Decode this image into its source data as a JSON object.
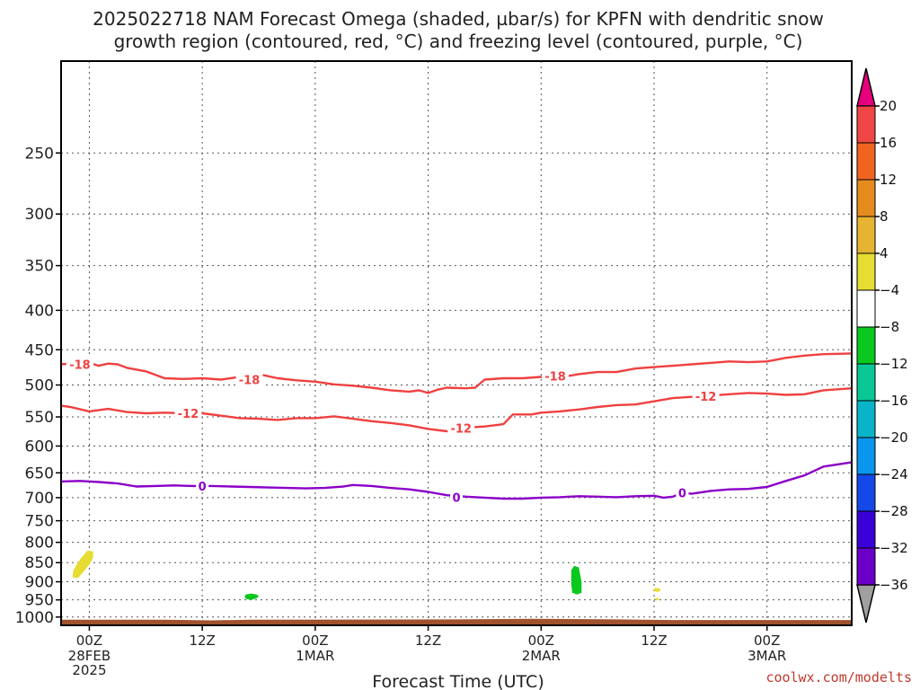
{
  "chart_data": {
    "type": "time-height",
    "title": "2025022718 NAM Forecast Omega (shaded, µbar/s) for KPFN with dendritic snow growth region (contoured, red, °C) and freezing level (contoured, purple, °C)",
    "title_lines": [
      "2025022718 NAM Forecast Omega (shaded, µbar/s) for KPFN with dendritic snow",
      "growth region (contoured, red, °C) and freezing level (contoured, purple, °C)"
    ],
    "xlabel": "Forecast Time (UTC)",
    "ylabel": "",
    "x_unit": "hours from 2025-02-27 18Z",
    "xlim": [
      3,
      87
    ],
    "x_ticks": [
      {
        "x": 6,
        "label": "00Z",
        "date": "28FEB",
        "year": "2025"
      },
      {
        "x": 18,
        "label": "12Z",
        "date": "",
        "year": ""
      },
      {
        "x": 30,
        "label": "00Z",
        "date": "1MAR",
        "year": ""
      },
      {
        "x": 42,
        "label": "12Z",
        "date": "",
        "year": ""
      },
      {
        "x": 54,
        "label": "00Z",
        "date": "2MAR",
        "year": ""
      },
      {
        "x": 66,
        "label": "12Z",
        "date": "",
        "year": ""
      },
      {
        "x": 78,
        "label": "00Z",
        "date": "3MAR",
        "year": ""
      }
    ],
    "y_scale": "log-pressure",
    "ylim_hpa": [
      1025,
      190
    ],
    "y_ticks": [
      250,
      300,
      350,
      400,
      450,
      500,
      550,
      600,
      650,
      700,
      750,
      800,
      850,
      900,
      950,
      1000
    ],
    "grid": true,
    "colorbar": {
      "unit": "µbar/s",
      "levels": [
        -36,
        -32,
        -28,
        -24,
        -20,
        -16,
        -12,
        -8,
        -4,
        4,
        8,
        12,
        16,
        20
      ],
      "colors": [
        "#a0a0a0",
        "#9b00c8",
        "#6a00c8",
        "#3a00d8",
        "#1448e8",
        "#0a96ec",
        "#0ab4c8",
        "#0ac896",
        "#0ac81e",
        "#ffffff",
        "#e6dc32",
        "#e6b432",
        "#e68c1e",
        "#f06420",
        "#f04646",
        "#e6007d"
      ],
      "ticks": [
        20,
        16,
        12,
        8,
        4,
        -4,
        -8,
        -12,
        -16,
        -20,
        -24,
        -28,
        -32,
        -36
      ]
    },
    "contours": [
      {
        "level": -18,
        "color": "#f04040",
        "points": [
          [
            3,
            470
          ],
          [
            4,
            469
          ],
          [
            5,
            473
          ],
          [
            6,
            468
          ],
          [
            7,
            472
          ],
          [
            8,
            469
          ],
          [
            9,
            470
          ],
          [
            10,
            475
          ],
          [
            12,
            480
          ],
          [
            14,
            490
          ],
          [
            16,
            491
          ],
          [
            18,
            490
          ],
          [
            20,
            492
          ],
          [
            22,
            488
          ],
          [
            24,
            484
          ],
          [
            26,
            490
          ],
          [
            28,
            493
          ],
          [
            30,
            495
          ],
          [
            32,
            499
          ],
          [
            34,
            501
          ],
          [
            36,
            504
          ],
          [
            38,
            508
          ],
          [
            40,
            510
          ],
          [
            41,
            508
          ],
          [
            42,
            512
          ],
          [
            43,
            507
          ],
          [
            44,
            504
          ],
          [
            46,
            505
          ],
          [
            47,
            504
          ],
          [
            48,
            492
          ],
          [
            50,
            490
          ],
          [
            52,
            490
          ],
          [
            54,
            488
          ],
          [
            56,
            489
          ],
          [
            58,
            484
          ],
          [
            60,
            481
          ],
          [
            62,
            481
          ],
          [
            64,
            476
          ],
          [
            66,
            474
          ],
          [
            68,
            472
          ],
          [
            70,
            470
          ],
          [
            72,
            468
          ],
          [
            74,
            466
          ],
          [
            76,
            467
          ],
          [
            78,
            466
          ],
          [
            80,
            461
          ],
          [
            82,
            458
          ],
          [
            84,
            456
          ],
          [
            87,
            455
          ]
        ]
      },
      {
        "level": -12,
        "color": "#f04040",
        "points": [
          [
            3,
            532
          ],
          [
            4,
            534
          ],
          [
            6,
            541
          ],
          [
            8,
            537
          ],
          [
            10,
            542
          ],
          [
            12,
            544
          ],
          [
            14,
            543
          ],
          [
            16,
            544
          ],
          [
            18,
            544
          ],
          [
            20,
            548
          ],
          [
            22,
            552
          ],
          [
            24,
            553
          ],
          [
            26,
            555
          ],
          [
            28,
            552
          ],
          [
            30,
            552
          ],
          [
            32,
            549
          ],
          [
            34,
            553
          ],
          [
            36,
            557
          ],
          [
            38,
            560
          ],
          [
            40,
            564
          ],
          [
            42,
            570
          ],
          [
            44,
            574
          ],
          [
            45,
            572
          ],
          [
            46,
            568
          ],
          [
            48,
            566
          ],
          [
            49,
            564
          ],
          [
            50,
            562
          ],
          [
            51,
            546
          ],
          [
            53,
            546
          ],
          [
            54,
            543
          ],
          [
            56,
            541
          ],
          [
            58,
            538
          ],
          [
            60,
            534
          ],
          [
            62,
            531
          ],
          [
            64,
            530
          ],
          [
            66,
            525
          ],
          [
            68,
            520
          ],
          [
            70,
            518
          ],
          [
            72,
            516
          ],
          [
            74,
            514
          ],
          [
            76,
            512
          ],
          [
            78,
            513
          ],
          [
            80,
            515
          ],
          [
            82,
            514
          ],
          [
            84,
            508
          ],
          [
            87,
            505
          ]
        ]
      },
      {
        "level": 0,
        "color": "#8a00c8",
        "points": [
          [
            3,
            667
          ],
          [
            5,
            666
          ],
          [
            7,
            668
          ],
          [
            9,
            671
          ],
          [
            11,
            677
          ],
          [
            13,
            676
          ],
          [
            15,
            675
          ],
          [
            17,
            676
          ],
          [
            19,
            676
          ],
          [
            21,
            677
          ],
          [
            23,
            678
          ],
          [
            25,
            679
          ],
          [
            27,
            680
          ],
          [
            29,
            681
          ],
          [
            31,
            680
          ],
          [
            33,
            677
          ],
          [
            34,
            674
          ],
          [
            36,
            676
          ],
          [
            38,
            680
          ],
          [
            40,
            683
          ],
          [
            42,
            688
          ],
          [
            44,
            695
          ],
          [
            46,
            698
          ],
          [
            48,
            700
          ],
          [
            50,
            702
          ],
          [
            52,
            702
          ],
          [
            54,
            700
          ],
          [
            56,
            699
          ],
          [
            58,
            697
          ],
          [
            60,
            698
          ],
          [
            62,
            699
          ],
          [
            64,
            697
          ],
          [
            66,
            696
          ],
          [
            67,
            700
          ],
          [
            68,
            698
          ],
          [
            69,
            690
          ],
          [
            70,
            692
          ],
          [
            72,
            686
          ],
          [
            74,
            683
          ],
          [
            76,
            682
          ],
          [
            78,
            678
          ],
          [
            80,
            666
          ],
          [
            82,
            655
          ],
          [
            84,
            638
          ],
          [
            87,
            630
          ]
        ]
      }
    ],
    "contour_labels": [
      {
        "level": "-18",
        "x": 5.0,
        "p": 470,
        "color": "#f04040"
      },
      {
        "level": "-18",
        "x": 23.0,
        "p": 492,
        "color": "#f04040"
      },
      {
        "level": "-18",
        "x": 55.5,
        "p": 487,
        "color": "#f04040"
      },
      {
        "level": "-12",
        "x": 16.5,
        "p": 544,
        "color": "#f04040"
      },
      {
        "level": "-12",
        "x": 45.5,
        "p": 569,
        "color": "#f04040"
      },
      {
        "level": "-12",
        "x": 71.5,
        "p": 517,
        "color": "#f04040"
      },
      {
        "level": "0",
        "x": 18.0,
        "p": 676,
        "color": "#8a00c8"
      },
      {
        "level": "0",
        "x": 45.0,
        "p": 699,
        "color": "#8a00c8"
      },
      {
        "level": "0",
        "x": 69.0,
        "p": 690,
        "color": "#8a00c8"
      }
    ],
    "shaded_regions": [
      {
        "value": "4 to 8",
        "color": "#e6dc32",
        "points": [
          [
            4.8,
            890
          ],
          [
            5.5,
            870
          ],
          [
            6.0,
            855
          ],
          [
            6.4,
            838
          ],
          [
            6.4,
            822
          ],
          [
            5.8,
            820
          ],
          [
            5.0,
            842
          ],
          [
            4.3,
            870
          ],
          [
            4.2,
            888
          ]
        ]
      },
      {
        "value": "-4 to -8",
        "color": "#0ac81e",
        "points": [
          [
            23.2,
            950
          ],
          [
            23.8,
            945
          ],
          [
            24.0,
            940
          ],
          [
            23.8,
            935
          ],
          [
            23.2,
            932
          ],
          [
            22.6,
            935
          ],
          [
            22.5,
            942
          ],
          [
            22.7,
            948
          ]
        ]
      },
      {
        "value": "-4 to -8",
        "color": "#0ac81e",
        "points": [
          [
            57.8,
            935
          ],
          [
            58.3,
            930
          ],
          [
            58.3,
            900
          ],
          [
            58.0,
            862
          ],
          [
            57.5,
            858
          ],
          [
            57.2,
            870
          ],
          [
            57.2,
            905
          ],
          [
            57.3,
            930
          ]
        ]
      },
      {
        "value": "4 to 8",
        "color": "#e6dc32",
        "points": [
          [
            66.2,
            928
          ],
          [
            66.7,
            925
          ],
          [
            66.6,
            918
          ],
          [
            66.1,
            917
          ],
          [
            65.9,
            922
          ]
        ]
      },
      {
        "value": "4 to 8",
        "color": "#e6dc32",
        "points": [
          [
            66.3,
            952
          ],
          [
            66.6,
            948
          ],
          [
            66.3,
            944
          ],
          [
            66.0,
            948
          ]
        ]
      }
    ],
    "terrain": {
      "color": "#a0522d",
      "top_hpa": [
        [
          3,
          1008
        ],
        [
          14,
          1008
        ],
        [
          19,
          1010
        ],
        [
          23,
          1008
        ],
        [
          45,
          1007
        ],
        [
          53,
          1005
        ],
        [
          62,
          1007
        ],
        [
          68,
          1009
        ],
        [
          87,
          1009
        ]
      ]
    }
  },
  "watermark": "coolwx.com/modelts"
}
